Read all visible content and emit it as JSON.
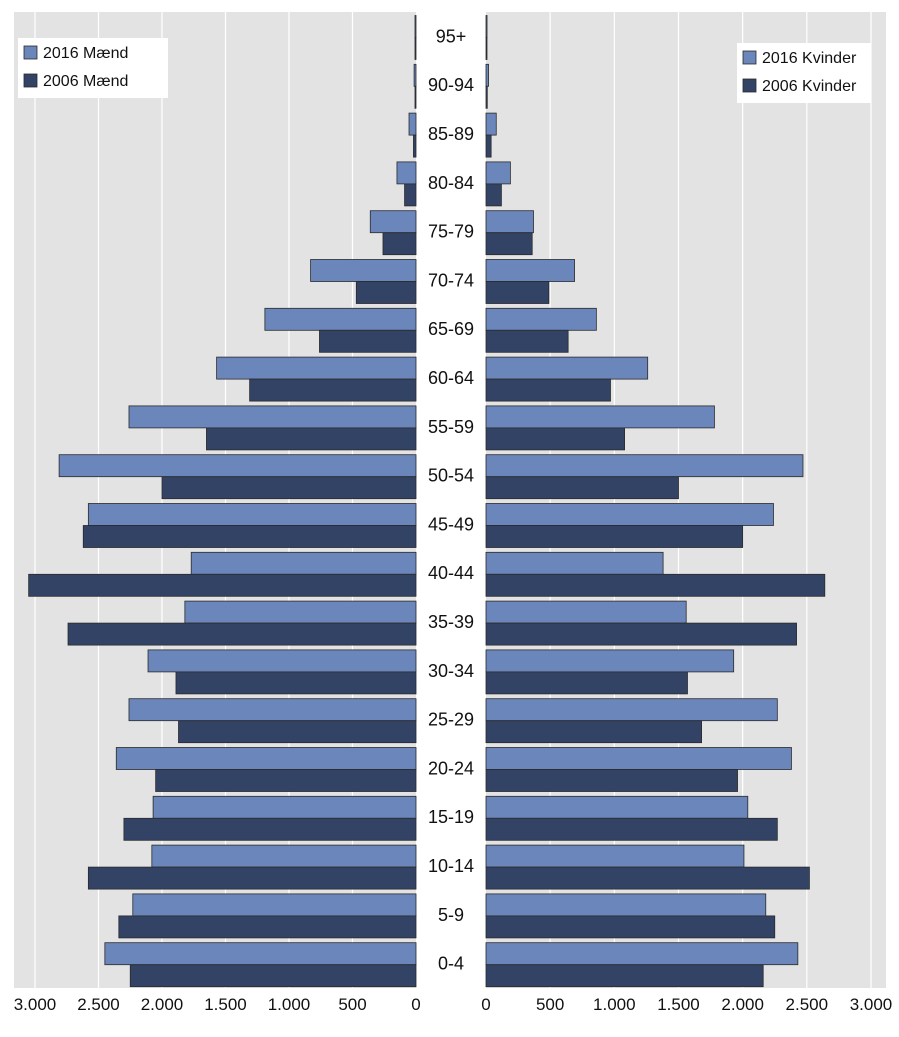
{
  "chart_data": {
    "type": "bar",
    "orientation": "horizontal",
    "layout": "population-pyramid",
    "categories": [
      "0-4",
      "5-9",
      "10-14",
      "15-19",
      "20-24",
      "25-29",
      "30-34",
      "35-39",
      "40-44",
      "45-49",
      "50-54",
      "55-59",
      "60-64",
      "65-69",
      "70-74",
      "75-79",
      "80-84",
      "85-89",
      "90-94",
      "95+"
    ],
    "left": {
      "ticks": [
        "3.000",
        "2.500",
        "2.000",
        "1.500",
        "1.000",
        "500",
        "0"
      ],
      "tick_values": [
        3000,
        2500,
        2000,
        1500,
        1000,
        500,
        0
      ],
      "xlim": [
        0,
        3000
      ],
      "series": [
        {
          "name": "2016 Mænd",
          "color": "#6b86bb",
          "values": [
            2450,
            2230,
            2080,
            2070,
            2360,
            2260,
            2110,
            1820,
            1770,
            2580,
            2810,
            2260,
            1570,
            1190,
            830,
            360,
            150,
            55,
            15,
            5
          ]
        },
        {
          "name": "2006 Mænd",
          "color": "#324366",
          "values": [
            2250,
            2340,
            2580,
            2300,
            2050,
            1870,
            1890,
            2740,
            3050,
            2620,
            2000,
            1650,
            1310,
            760,
            470,
            260,
            90,
            20,
            8,
            3
          ]
        }
      ],
      "legend": {
        "position": "top-left",
        "entries": [
          "2016 Mænd",
          "2006 Mænd"
        ]
      }
    },
    "right": {
      "ticks": [
        "0",
        "500",
        "1.000",
        "1.500",
        "2.000",
        "2.500",
        "3.000"
      ],
      "tick_values": [
        0,
        500,
        1000,
        1500,
        2000,
        2500,
        3000
      ],
      "xlim": [
        0,
        3000
      ],
      "series": [
        {
          "name": "2016 Kvinder",
          "color": "#6b86bb",
          "values": [
            2430,
            2180,
            2010,
            2040,
            2380,
            2270,
            1930,
            1560,
            1380,
            2240,
            2470,
            1780,
            1260,
            860,
            690,
            370,
            190,
            80,
            20,
            8
          ]
        },
        {
          "name": "2006 Kvinder",
          "color": "#324366",
          "values": [
            2160,
            2250,
            2520,
            2270,
            1960,
            1680,
            1570,
            2420,
            2640,
            2000,
            1500,
            1080,
            970,
            640,
            490,
            360,
            120,
            40,
            10,
            3
          ]
        }
      ],
      "legend": {
        "position": "top-right",
        "entries": [
          "2016 Kvinder",
          "2006 Kvinder"
        ]
      }
    },
    "colors": {
      "panel_bg": "#e3e3e3",
      "gridline": "#ffffff",
      "bar_2016": "#6b86bb",
      "bar_2006": "#324366",
      "bar_outline": "#2a2a2a"
    },
    "grid": true
  }
}
